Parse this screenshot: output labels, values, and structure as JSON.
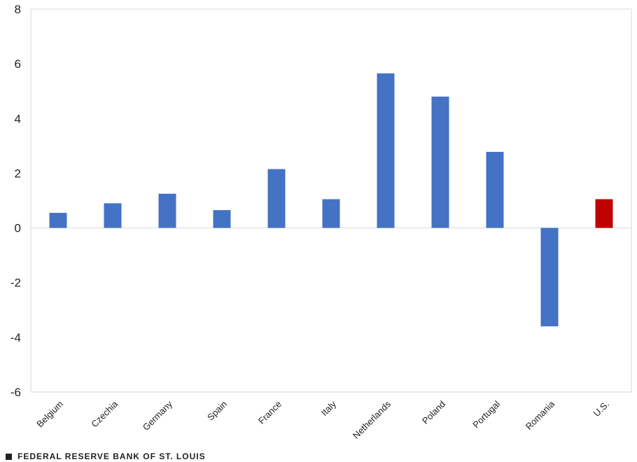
{
  "chart_data": {
    "type": "bar",
    "title": "",
    "xlabel": "",
    "ylabel": "",
    "categories": [
      "Belgium",
      "Czechia",
      "Germany",
      "Spain",
      "France",
      "Italy",
      "Netherlands",
      "Poland",
      "Portugal",
      "Romania",
      "U.S."
    ],
    "values": [
      0.55,
      0.9,
      1.25,
      0.65,
      2.15,
      1.05,
      5.65,
      4.8,
      2.78,
      -3.6,
      1.05
    ],
    "colors": [
      "#4472C4",
      "#4472C4",
      "#4472C4",
      "#4472C4",
      "#4472C4",
      "#4472C4",
      "#4472C4",
      "#4472C4",
      "#4472C4",
      "#4472C4",
      "#C00000"
    ],
    "ylim": [
      -6,
      8
    ],
    "yticks": [
      8,
      6,
      4,
      2,
      0,
      -2,
      -4,
      -6
    ],
    "ytick_labels": [
      "8",
      "6",
      "4",
      "2",
      "0",
      "-2",
      "-4",
      "-6"
    ],
    "grid": false,
    "legend": "none"
  },
  "footer": {
    "text": "FEDERAL RESERVE BANK OF ST. LOUIS"
  }
}
